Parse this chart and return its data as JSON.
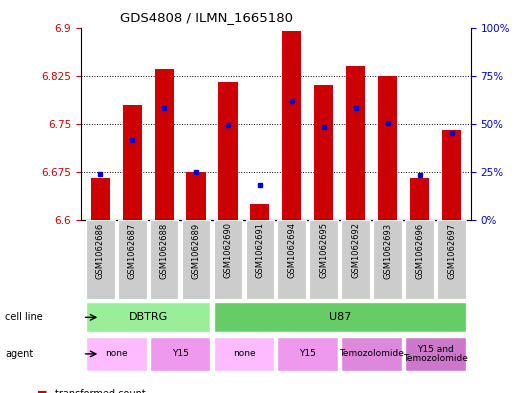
{
  "title": "GDS4808 / ILMN_1665180",
  "samples": [
    "GSM1062686",
    "GSM1062687",
    "GSM1062688",
    "GSM1062689",
    "GSM1062690",
    "GSM1062691",
    "GSM1062694",
    "GSM1062695",
    "GSM1062692",
    "GSM1062693",
    "GSM1062696",
    "GSM1062697"
  ],
  "red_values": [
    6.665,
    6.78,
    6.835,
    6.675,
    6.815,
    6.625,
    6.895,
    6.81,
    6.84,
    6.825,
    6.665,
    6.74
  ],
  "blue_values": [
    6.672,
    6.725,
    6.775,
    6.675,
    6.748,
    6.655,
    6.785,
    6.745,
    6.775,
    6.752,
    6.671,
    6.735
  ],
  "ymin": 6.6,
  "ymax": 6.9,
  "y_ticks": [
    6.6,
    6.675,
    6.75,
    6.825,
    6.9
  ],
  "y2_ticks": [
    0,
    25,
    50,
    75,
    100
  ],
  "bar_color": "#cc0000",
  "dot_color": "#0000cc",
  "bar_bottom": 6.6,
  "cell_line_groups": [
    {
      "label": "DBTRG",
      "start": 0,
      "end": 3,
      "color": "#99ee99"
    },
    {
      "label": "U87",
      "start": 4,
      "end": 11,
      "color": "#66cc66"
    }
  ],
  "agent_groups": [
    {
      "label": "none",
      "start": 0,
      "end": 1,
      "color": "#ffbbff"
    },
    {
      "label": "Y15",
      "start": 2,
      "end": 3,
      "color": "#ee99ee"
    },
    {
      "label": "none",
      "start": 4,
      "end": 5,
      "color": "#ffbbff"
    },
    {
      "label": "Y15",
      "start": 6,
      "end": 7,
      "color": "#ee99ee"
    },
    {
      "label": "Temozolomide",
      "start": 8,
      "end": 9,
      "color": "#dd88dd"
    },
    {
      "label": "Y15 and\nTemozolomide",
      "start": 10,
      "end": 11,
      "color": "#cc77cc"
    }
  ],
  "tick_color_left": "#cc0000",
  "tick_color_right": "#0000cc",
  "xlabel_bg": "#cccccc",
  "grid_dotted_ticks": [
    6.675,
    6.75,
    6.825
  ]
}
